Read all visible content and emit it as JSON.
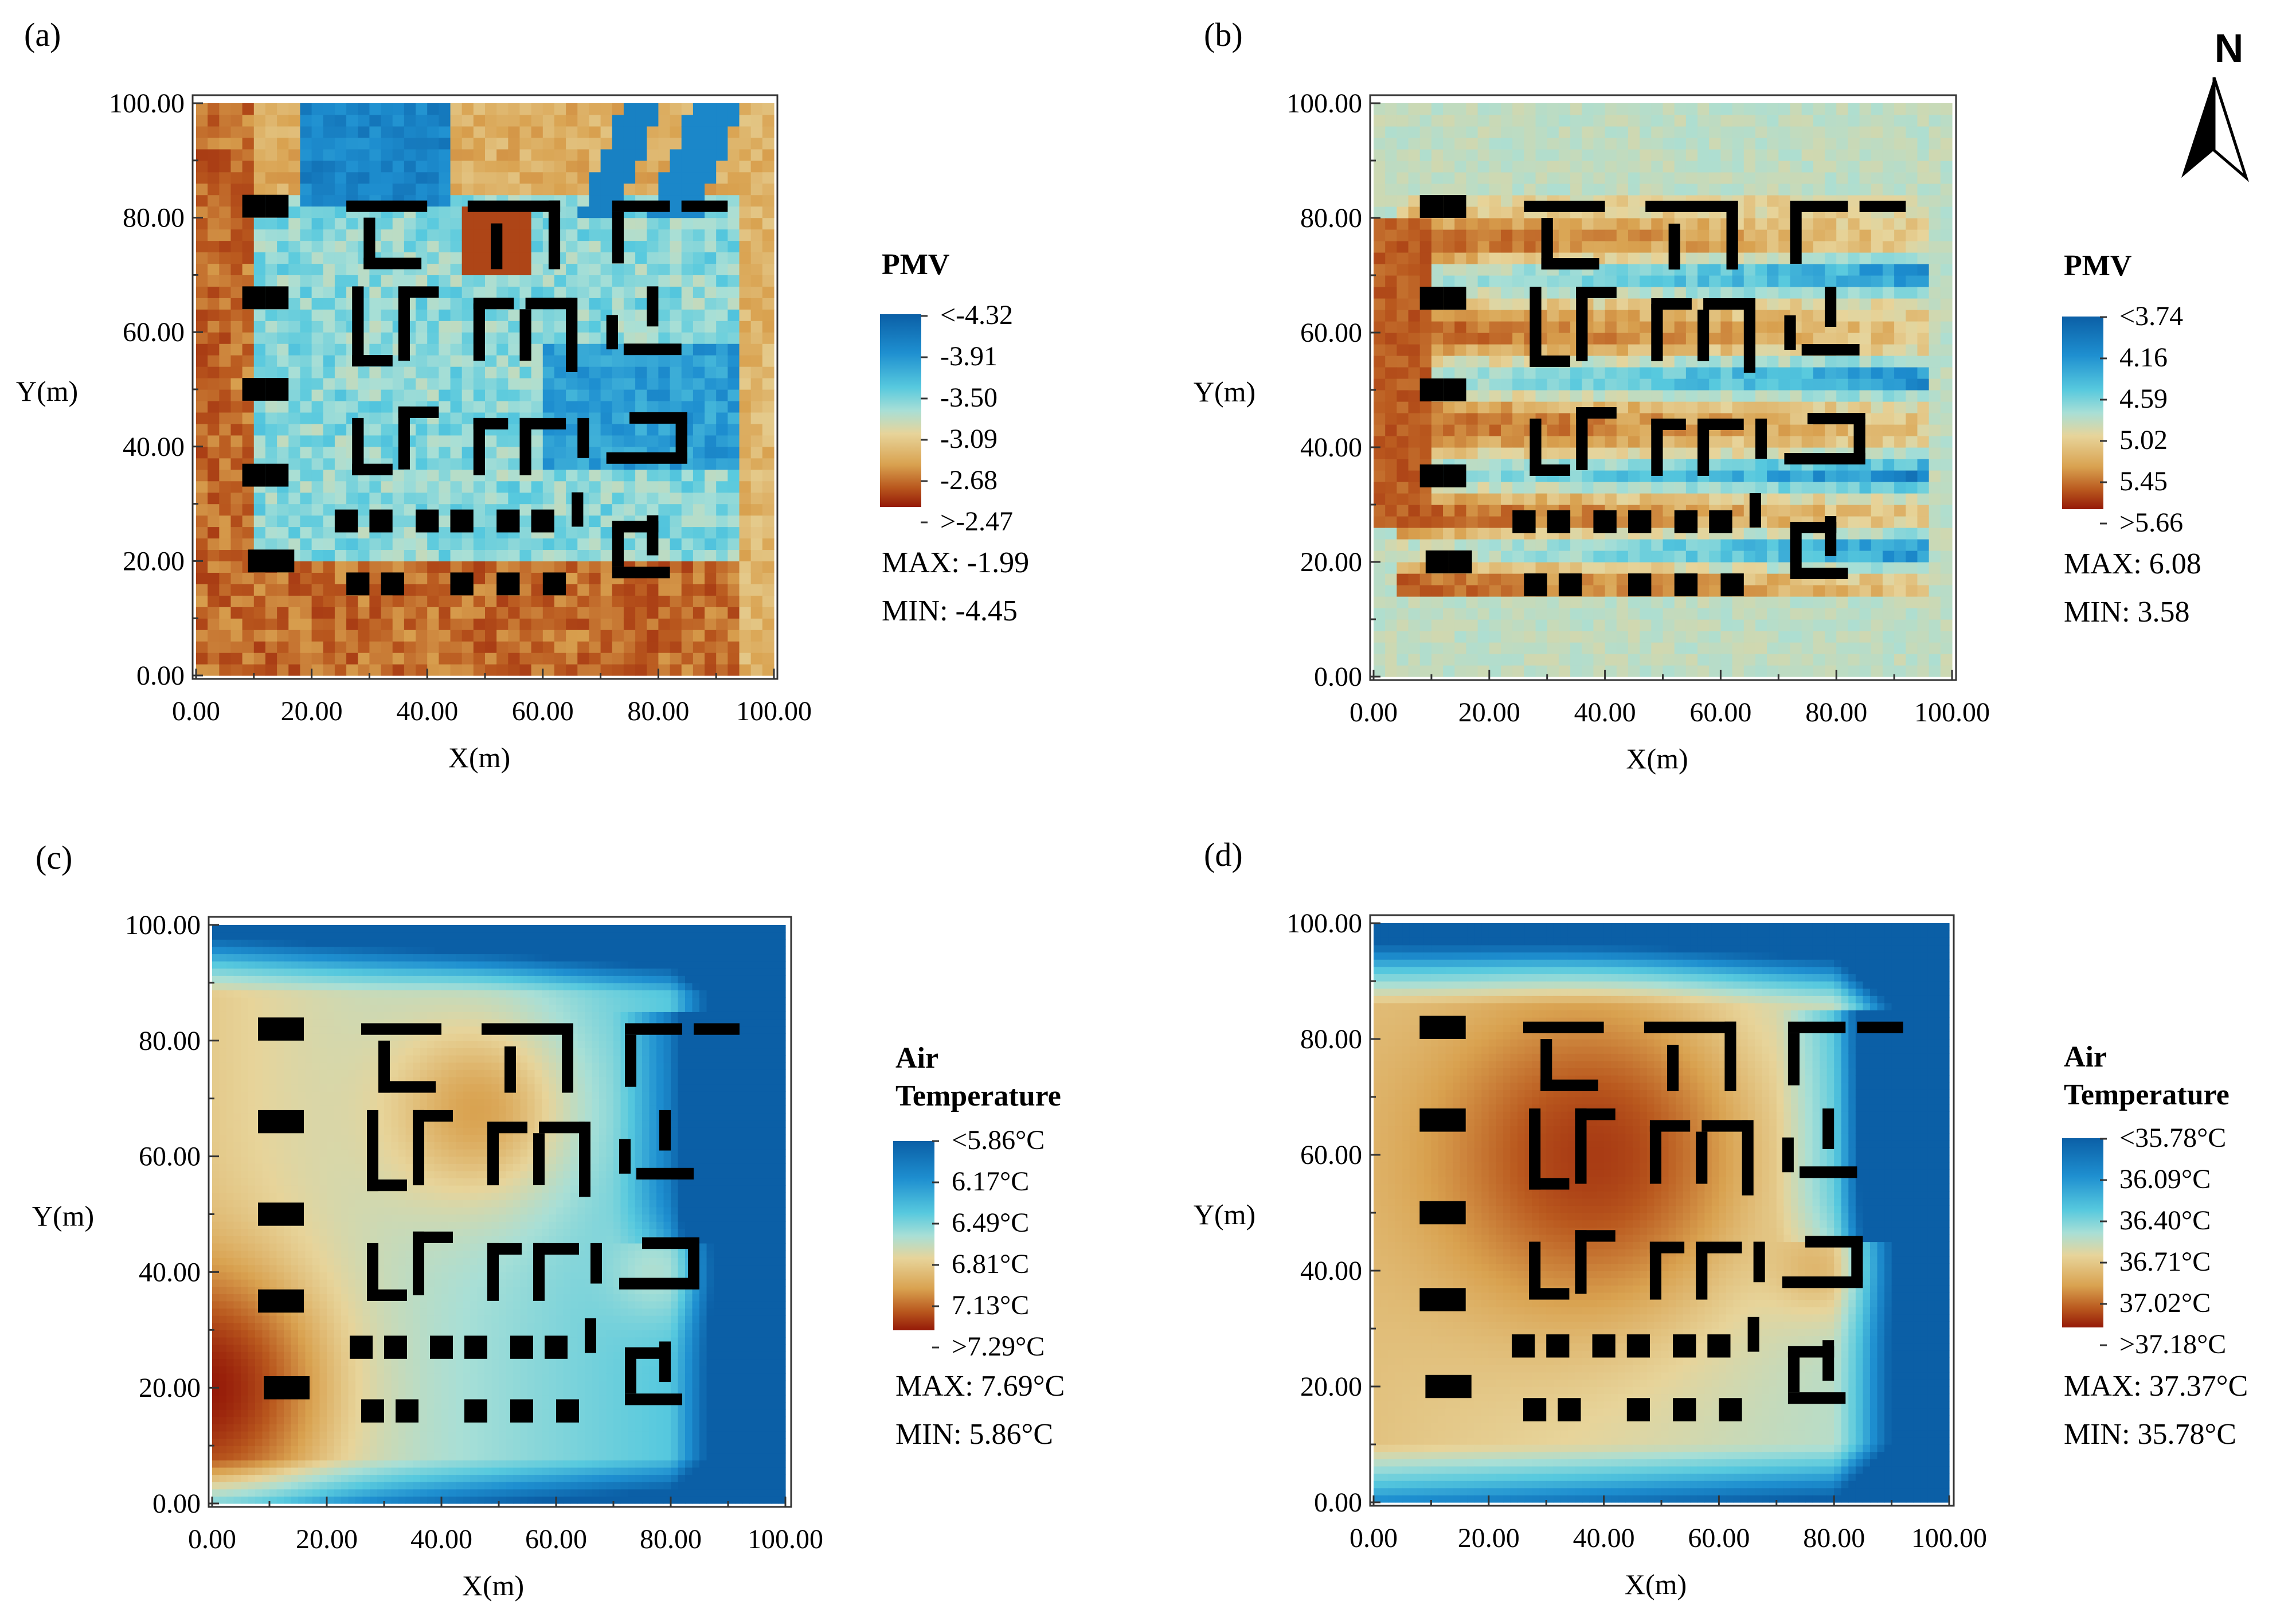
{
  "figure": {
    "north_label": "N"
  },
  "colors": {
    "scale": [
      "#0b5fa6",
      "#1e8fd0",
      "#57c9de",
      "#a8dfd6",
      "#e7d49a",
      "#d9a250",
      "#b9581e",
      "#951a08"
    ],
    "building": "#000000"
  },
  "chart_data": [
    {
      "type": "heatmap",
      "panel_label": "(a)",
      "title": "PMV",
      "xlabel": "X(m)",
      "ylabel": "Y(m)",
      "xlim": [
        0,
        100
      ],
      "ylim": [
        0,
        100
      ],
      "xticks": [
        "0.00",
        "20.00",
        "40.00",
        "60.00",
        "80.00",
        "100.00"
      ],
      "yticks": [
        "0.00",
        "20.00",
        "40.00",
        "60.00",
        "80.00",
        "100.00"
      ],
      "legend_title": "PMV",
      "legend_values": [
        "<-4.32",
        "-3.91",
        "-3.50",
        "-3.09",
        "-2.68",
        ">-2.47"
      ],
      "max_label": "MAX:  -1.99",
      "min_label": "MIN:  -4.45",
      "max": -1.99,
      "min": -4.45,
      "pattern": "pmv_winter"
    },
    {
      "type": "heatmap",
      "panel_label": "(b)",
      "title": "PMV",
      "xlabel": "X(m)",
      "ylabel": "Y(m)",
      "xlim": [
        0,
        100
      ],
      "ylim": [
        0,
        100
      ],
      "xticks": [
        "0.00",
        "20.00",
        "40.00",
        "60.00",
        "80.00",
        "100.00"
      ],
      "yticks": [
        "0.00",
        "20.00",
        "40.00",
        "60.00",
        "80.00",
        "100.00"
      ],
      "legend_title": "PMV",
      "legend_values": [
        "<3.74",
        "4.16",
        "4.59",
        "5.02",
        "5.45",
        ">5.66"
      ],
      "max_label": "MAX:  6.08",
      "min_label": "MIN:  3.58",
      "max": 6.08,
      "min": 3.58,
      "pattern": "pmv_summer"
    },
    {
      "type": "heatmap",
      "panel_label": "(c)",
      "title": "Air Temperature",
      "xlabel": "X(m)",
      "ylabel": "Y(m)",
      "xlim": [
        0,
        100
      ],
      "ylim": [
        0,
        100
      ],
      "xticks": [
        "0.00",
        "20.00",
        "40.00",
        "60.00",
        "80.00",
        "100.00"
      ],
      "yticks": [
        "0.00",
        "20.00",
        "40.00",
        "60.00",
        "80.00",
        "100.00"
      ],
      "legend_title_lines": [
        "Air",
        "Temperature"
      ],
      "legend_values": [
        "<5.86°C",
        "6.17°C",
        "6.49°C",
        "6.81°C",
        "7.13°C",
        ">7.29°C"
      ],
      "max_label": "MAX:  7.69°C",
      "min_label": "MIN:  5.86°C",
      "max": 7.69,
      "min": 5.86,
      "pattern": "temp_winter"
    },
    {
      "type": "heatmap",
      "panel_label": "(d)",
      "title": "Air Temperature",
      "xlabel": "X(m)",
      "ylabel": "Y(m)",
      "xlim": [
        0,
        100
      ],
      "ylim": [
        0,
        100
      ],
      "xticks": [
        "0.00",
        "20.00",
        "40.00",
        "60.00",
        "80.00",
        "100.00"
      ],
      "yticks": [
        "0.00",
        "20.00",
        "40.00",
        "60.00",
        "80.00",
        "100.00"
      ],
      "legend_title_lines": [
        "Air",
        "Temperature"
      ],
      "legend_values": [
        "<35.78°C",
        "36.09°C",
        "36.40°C",
        "36.71°C",
        "37.02°C",
        ">37.18°C"
      ],
      "max_label": "MAX:  37.37°C",
      "min_label": "MIN:  35.78°C",
      "max": 37.37,
      "min": 35.78,
      "pattern": "temp_summer"
    }
  ]
}
